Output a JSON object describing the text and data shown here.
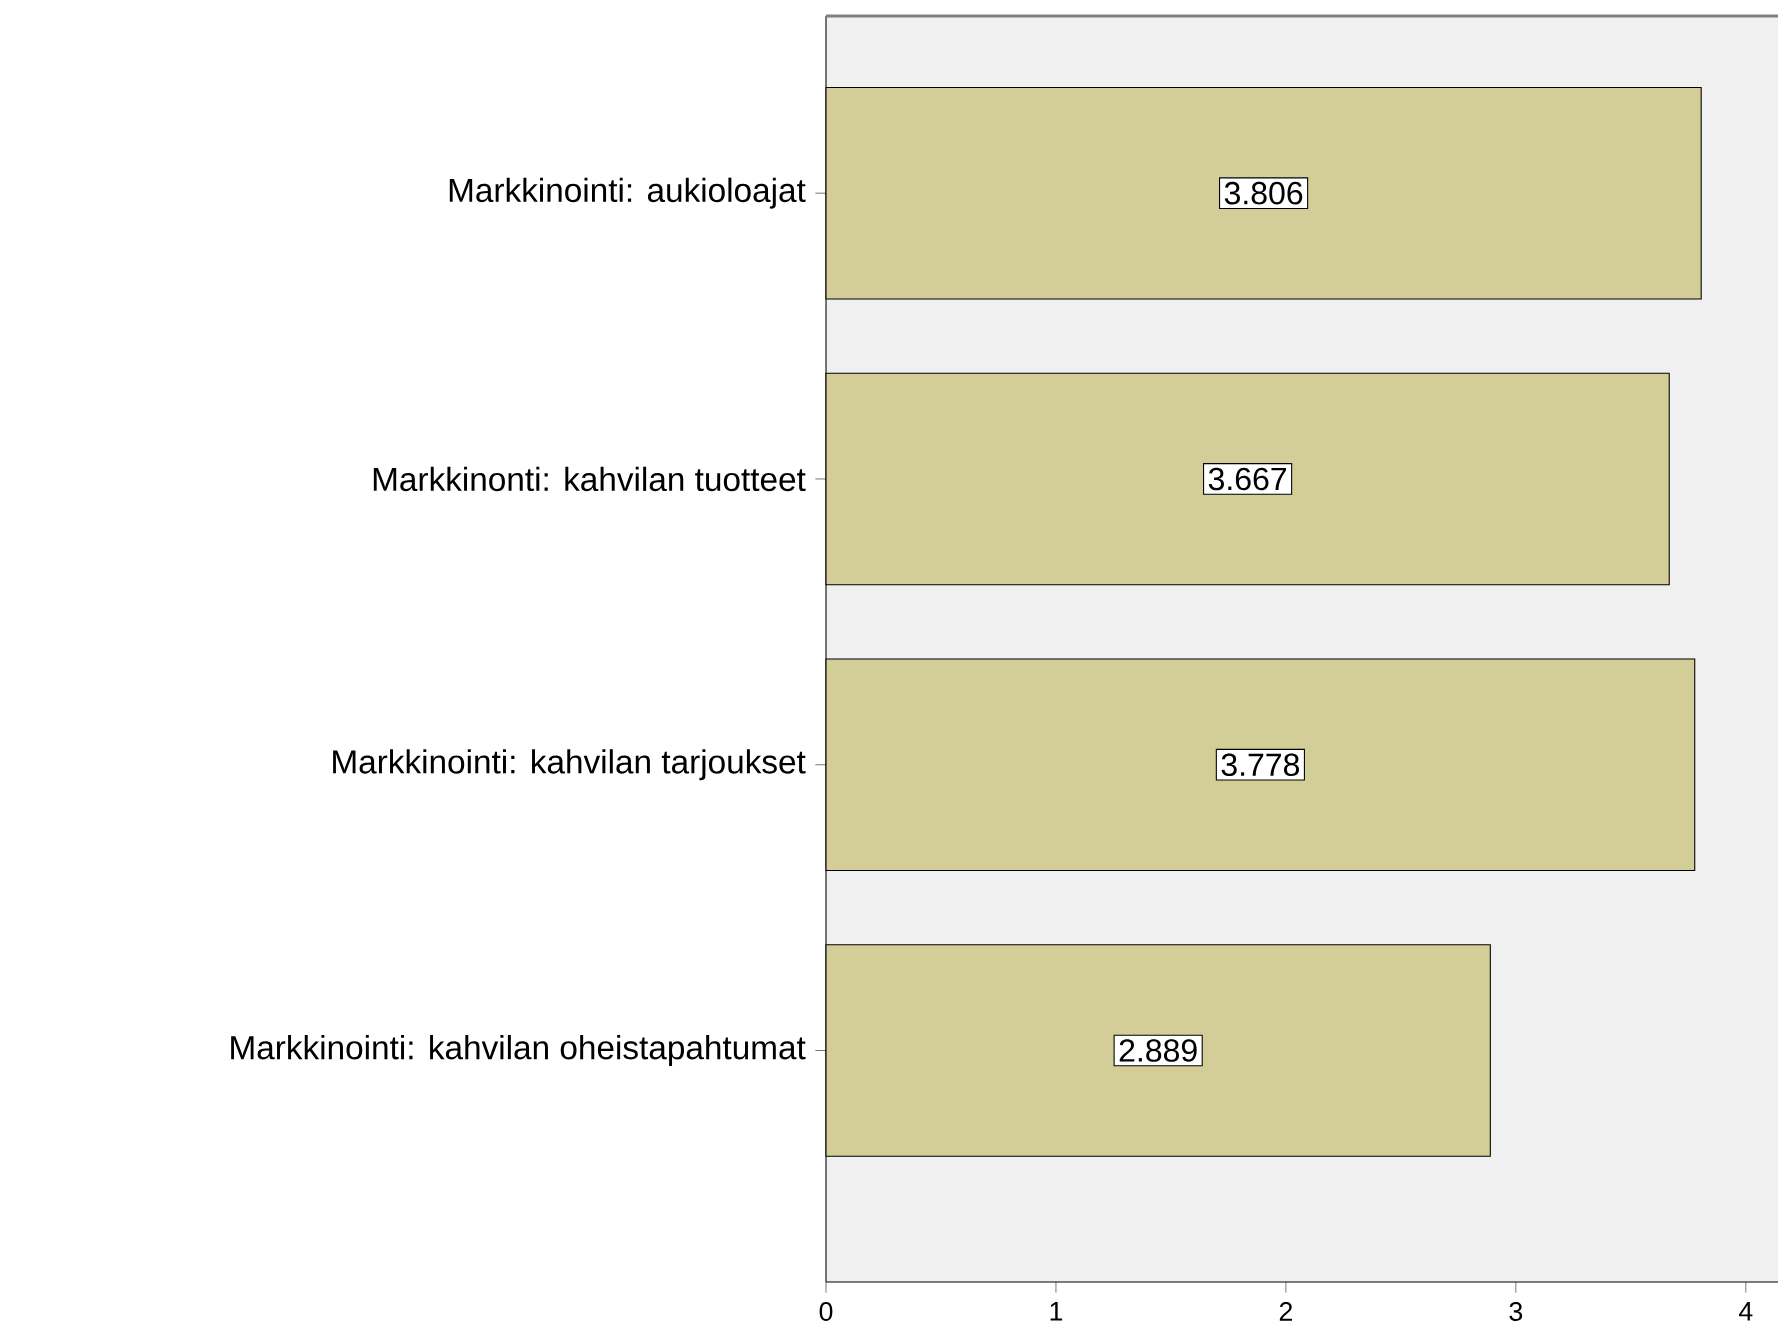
{
  "chart_data": {
    "type": "bar",
    "orientation": "horizontal",
    "categories": [
      "Markkinointi: aukioloajat",
      "Markkinonti: kahvilan tuotteet",
      "Markkinointi: kahvilan tarjoukset",
      "Markkinointi: kahvilan oheistapahtumat"
    ],
    "values": [
      3.806,
      3.667,
      3.778,
      2.889
    ],
    "color": "#d3ce97",
    "xlim": [
      0,
      4.14
    ],
    "xticks": [
      0,
      1,
      2,
      3,
      4
    ],
    "data_labels": true
  }
}
